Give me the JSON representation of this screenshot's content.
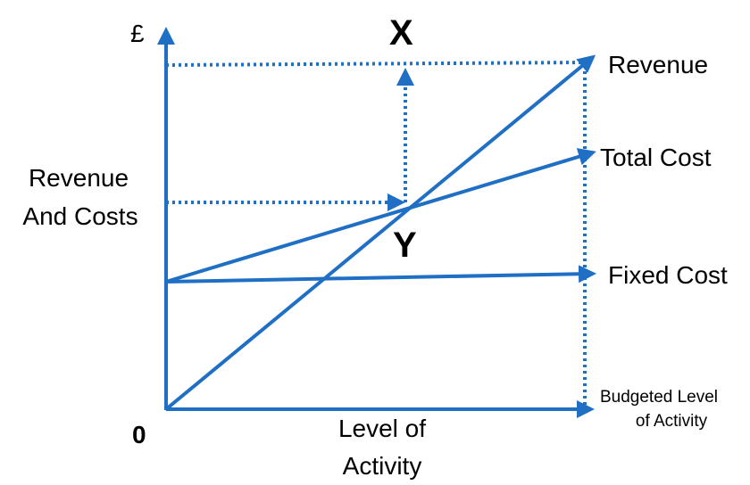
{
  "colors": {
    "line": "#1f6fc5",
    "text": "#000000",
    "background": "#ffffff"
  },
  "axes": {
    "y_symbol": "£",
    "y_label_line1": "Revenue",
    "y_label_line2": "And Costs",
    "origin_label": "0",
    "x_label_line1": "Level of",
    "x_label_line2": "Activity"
  },
  "lines": {
    "revenue": "Revenue",
    "total_cost": "Total Cost",
    "fixed_cost": "Fixed Cost"
  },
  "budget": {
    "line1": "Budgeted Level",
    "line2": "of Activity"
  },
  "points": {
    "x": "X",
    "y": "Y"
  }
}
